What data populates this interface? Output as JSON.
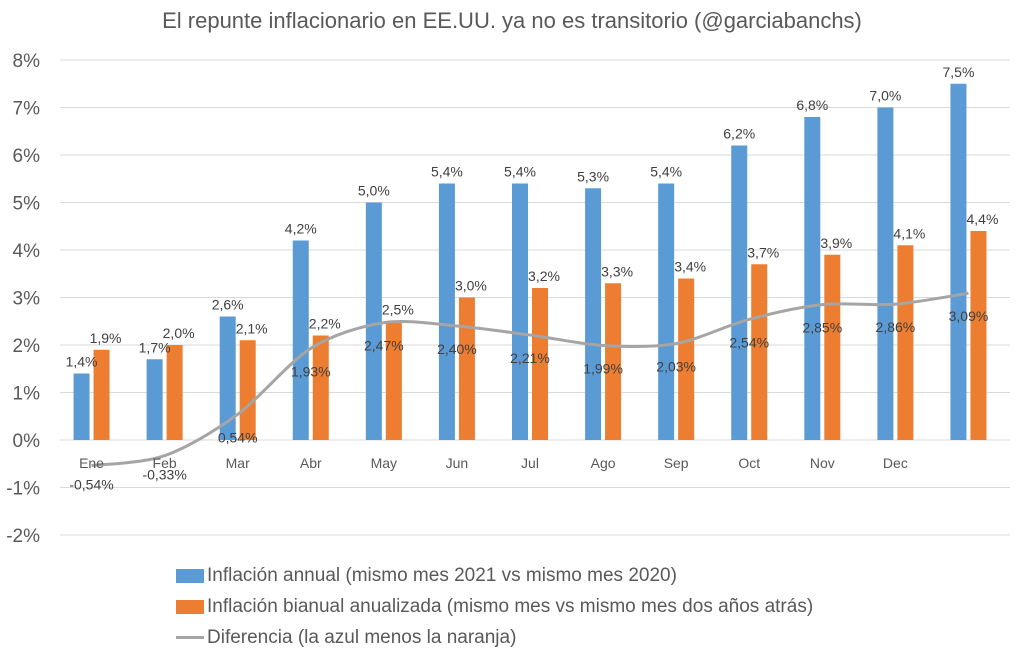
{
  "chart_data": {
    "type": "bar",
    "title": "El repunte inflacionario en EE.UU. ya no es transitorio (@garciabanchs)",
    "xlabel": "",
    "ylabel": "",
    "ylim": [
      -2,
      8
    ],
    "yticks": [
      -2,
      -1,
      0,
      1,
      2,
      3,
      4,
      5,
      6,
      7,
      8
    ],
    "ytick_labels": [
      "-2%",
      "-1%",
      "0%",
      "1%",
      "2%",
      "3%",
      "4%",
      "5%",
      "6%",
      "7%",
      "8%"
    ],
    "grid": true,
    "legend_position": "bottom",
    "categories": [
      "Ene",
      "Feb",
      "Mar",
      "Abr",
      "May",
      "Jun",
      "Jul",
      "Ago",
      "Sep",
      "Oct",
      "Nov",
      "Dec",
      ""
    ],
    "series": [
      {
        "name": "Inflación annual (mismo mes 2021 vs mismo mes 2020)",
        "type": "bar",
        "color": "#5b9bd5",
        "values": [
          1.4,
          1.7,
          2.6,
          4.2,
          5.0,
          5.4,
          5.4,
          5.3,
          5.4,
          6.2,
          6.8,
          7.0,
          7.5
        ],
        "labels": [
          "1,4%",
          "1,7%",
          "2,6%",
          "4,2%",
          "5,0%",
          "5,4%",
          "5,4%",
          "5,3%",
          "5,4%",
          "6,2%",
          "6,8%",
          "7,0%",
          "7,5%"
        ]
      },
      {
        "name": "Inflación bianual anualizada (mismo mes vs mismo mes dos años atrás)",
        "type": "bar",
        "color": "#ed7d31",
        "values": [
          1.9,
          2.0,
          2.1,
          2.2,
          2.5,
          3.0,
          3.2,
          3.3,
          3.4,
          3.7,
          3.9,
          4.1,
          4.4
        ],
        "labels": [
          "1,9%",
          "2,0%",
          "2,1%",
          "2,2%",
          "2,5%",
          "3,0%",
          "3,2%",
          "3,3%",
          "3,4%",
          "3,7%",
          "3,9%",
          "4,1%",
          "4,4%"
        ]
      },
      {
        "name": "Diferencia (la azul menos la naranja)",
        "type": "line",
        "color": "#a5a5a5",
        "values": [
          -0.54,
          -0.33,
          0.54,
          1.93,
          2.47,
          2.4,
          2.21,
          1.99,
          2.03,
          2.54,
          2.85,
          2.86,
          3.09
        ],
        "labels": [
          "-0,54%",
          "-0,33%",
          "0,54%",
          "1,93%",
          "2,47%",
          "2,40%",
          "2,21%",
          "1,99%",
          "2,03%",
          "2,54%",
          "2,85%",
          "2,86%",
          "3,09%"
        ]
      }
    ]
  }
}
